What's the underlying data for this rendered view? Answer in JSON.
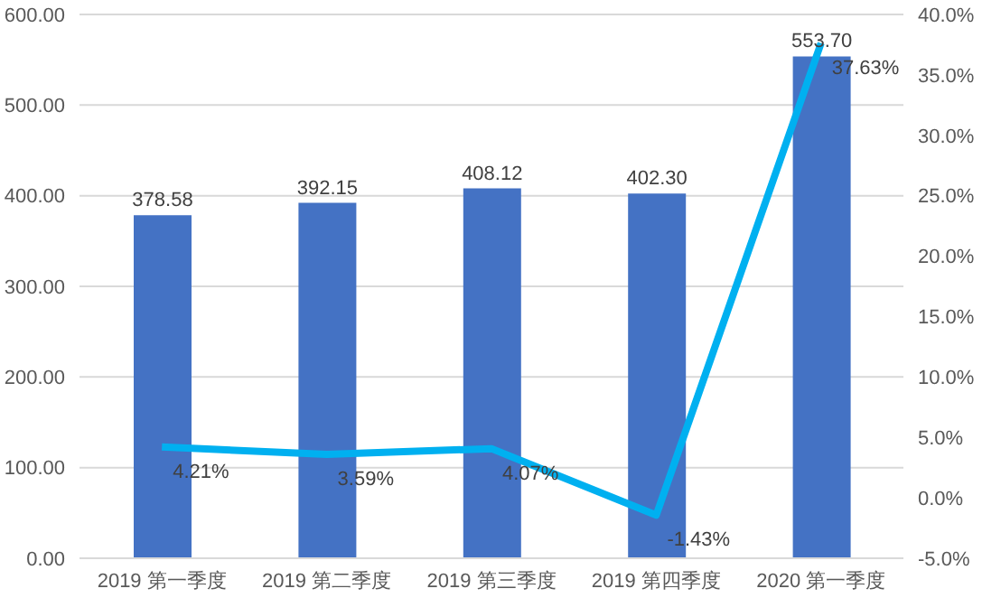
{
  "chart_data": {
    "type": "bar",
    "categories": [
      "2019 第一季度",
      "2019 第二季度",
      "2019 第三季度",
      "2019 第四季度",
      "2020 第一季度"
    ],
    "series": [
      {
        "color": "#4472c4",
        "values": [
          378.58,
          392.15,
          408.12,
          402.3,
          553.7
        ],
        "value_labels": [
          "378.58",
          "392.15",
          "408.12",
          "402.30",
          "553.70"
        ]
      },
      {
        "type": "line",
        "axis": "y2",
        "color": "#00b0f0",
        "values": [
          4.21,
          3.59,
          4.07,
          -1.43,
          37.63
        ],
        "value_labels": [
          "4.21%",
          "3.59%",
          "4.07%",
          "-1.43%",
          "37.63%"
        ]
      }
    ],
    "ylim": [
      0,
      600
    ],
    "yticks": [
      {
        "value": 0,
        "label": "0.00"
      },
      {
        "value": 100,
        "label": "100.00"
      },
      {
        "value": 200,
        "label": "200.00"
      },
      {
        "value": 300,
        "label": "300.00"
      },
      {
        "value": 400,
        "label": "400.00"
      },
      {
        "value": 500,
        "label": "500.00"
      },
      {
        "value": 600,
        "label": "600.00"
      }
    ],
    "y2lim": [
      -5,
      40
    ],
    "y2ticks": [
      {
        "value": -5,
        "label": "-5.0%"
      },
      {
        "value": 0,
        "label": "0.0%"
      },
      {
        "value": 5,
        "label": "5.0%"
      },
      {
        "value": 10,
        "label": "10.0%"
      },
      {
        "value": 15,
        "label": "15.0%"
      },
      {
        "value": 20,
        "label": "20.0%"
      },
      {
        "value": 25,
        "label": "25.0%"
      },
      {
        "value": 30,
        "label": "30.0%"
      },
      {
        "value": 35,
        "label": "35.0%"
      },
      {
        "value": 40,
        "label": "40.0%"
      }
    ],
    "grid": "y",
    "legend": false,
    "marker": "none",
    "line_style": "solid"
  }
}
